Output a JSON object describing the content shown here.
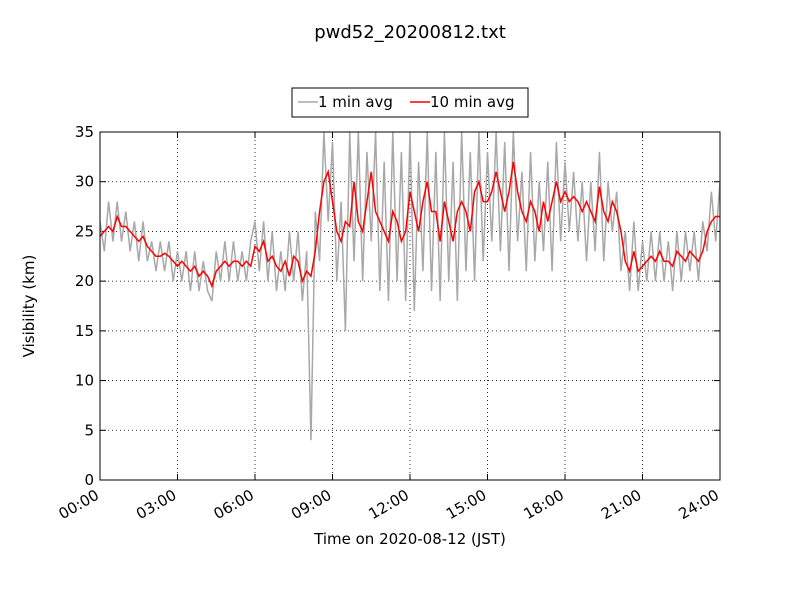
{
  "chart_data": {
    "type": "line",
    "title": "pwd52_20200812.txt",
    "xlabel": "Time on 2020-08-12 (JST)",
    "ylabel": "Visibility (km)",
    "x": [
      0,
      10,
      20,
      30,
      40,
      50,
      60,
      70,
      80,
      90,
      100,
      110,
      120,
      130,
      140,
      150,
      160,
      170,
      180,
      190,
      200,
      210,
      220,
      230,
      240,
      250,
      260,
      270,
      280,
      290,
      300,
      310,
      320,
      330,
      340,
      350,
      360,
      370,
      380,
      390,
      400,
      410,
      420,
      430,
      440,
      450,
      460,
      470,
      480,
      490,
      500,
      510,
      520,
      530,
      540,
      550,
      560,
      570,
      580,
      590,
      600,
      610,
      620,
      630,
      640,
      650,
      660,
      670,
      680,
      690,
      700,
      710,
      720,
      730,
      740,
      750,
      760,
      770,
      780,
      790,
      800,
      810,
      820,
      830,
      840,
      850,
      860,
      870,
      880,
      890,
      900,
      910,
      920,
      930,
      940,
      950,
      960,
      970,
      980,
      990,
      1000,
      1010,
      1020,
      1030,
      1040,
      1050,
      1060,
      1070,
      1080,
      1090,
      1100,
      1110,
      1120,
      1130,
      1140,
      1150,
      1160,
      1170,
      1180,
      1190,
      1200,
      1210,
      1220,
      1230,
      1240,
      1250,
      1260,
      1270,
      1280,
      1290,
      1300,
      1310,
      1320,
      1330,
      1340,
      1350,
      1360,
      1370,
      1380,
      1390,
      1400,
      1410,
      1420,
      1430,
      1440
    ],
    "series": [
      {
        "name": "1 min avg",
        "color": "#a8a8a8",
        "values": [
          26,
          23,
          28,
          24,
          28,
          24,
          27,
          23,
          26,
          22,
          26,
          22,
          24,
          21,
          24,
          21,
          24,
          20,
          23,
          20,
          23,
          19,
          23,
          19,
          22,
          19,
          18,
          23,
          20,
          24,
          20,
          24,
          20,
          23,
          20,
          24,
          26,
          21,
          26,
          20,
          25,
          19,
          23,
          19,
          25,
          20,
          25,
          18,
          23,
          4,
          27,
          22,
          35,
          26,
          34,
          20,
          28,
          15,
          35,
          22,
          35,
          20,
          33,
          24,
          35,
          19,
          32,
          18,
          35,
          20,
          33,
          18,
          35,
          17,
          32,
          21,
          35,
          19,
          33,
          18,
          35,
          20,
          32,
          18,
          35,
          21,
          33,
          20,
          35,
          22,
          33,
          24,
          35,
          23,
          34,
          21,
          35,
          24,
          31,
          21,
          33,
          22,
          30,
          23,
          32,
          21,
          34,
          24,
          32,
          25,
          31,
          24,
          30,
          22,
          30,
          23,
          33,
          22,
          30,
          25,
          29,
          21,
          25,
          19,
          26,
          19,
          24,
          20,
          25,
          20,
          25,
          20,
          24,
          19,
          25,
          20,
          25,
          21,
          25,
          20,
          26,
          23,
          29,
          24,
          30
        ]
      },
      {
        "name": "10 min avg",
        "color": "#ff0000",
        "values": [
          24.5,
          25,
          25.5,
          25,
          26.5,
          25.5,
          25.5,
          25,
          24.5,
          24,
          24.5,
          23.5,
          23,
          22.5,
          22.5,
          22.8,
          22.5,
          22,
          21.5,
          22,
          21.5,
          21,
          21.5,
          20.5,
          21,
          20.5,
          19.5,
          21,
          21.5,
          22,
          21.5,
          22,
          22,
          21.5,
          22,
          21.5,
          23.5,
          23,
          24,
          22,
          22.5,
          21.5,
          21,
          22,
          20.5,
          22.5,
          22,
          20,
          21,
          20.5,
          23,
          27,
          30,
          31,
          28,
          25,
          24,
          26,
          25.5,
          30,
          26,
          25,
          28,
          31,
          27,
          26,
          25,
          24,
          27,
          26,
          24,
          25,
          29,
          27,
          25,
          28,
          30,
          27,
          27,
          24,
          28,
          26,
          24,
          27,
          28,
          27,
          25,
          29,
          30,
          28,
          28,
          29,
          31,
          29,
          27,
          29,
          32,
          29,
          27,
          26,
          28,
          27,
          25,
          28,
          26,
          28,
          30,
          28,
          29,
          28,
          28.5,
          28,
          27,
          28,
          27,
          26,
          29.5,
          27,
          26,
          28,
          27,
          25,
          22,
          21,
          23,
          21,
          21.5,
          22,
          22.5,
          22,
          23,
          22,
          22,
          21.5,
          23,
          22.5,
          22,
          23,
          22.5,
          22,
          23,
          25,
          26,
          26.5,
          26.5
        ]
      }
    ],
    "xlim": [
      0,
      1440
    ],
    "xticks": [
      {
        "value": 0,
        "label": "00:00"
      },
      {
        "value": 180,
        "label": "03:00"
      },
      {
        "value": 360,
        "label": "06:00"
      },
      {
        "value": 540,
        "label": "09:00"
      },
      {
        "value": 720,
        "label": "12:00"
      },
      {
        "value": 900,
        "label": "15:00"
      },
      {
        "value": 1080,
        "label": "18:00"
      },
      {
        "value": 1260,
        "label": "21:00"
      },
      {
        "value": 1440,
        "label": "24:00"
      }
    ],
    "ylim": [
      0,
      35
    ],
    "yticks": [
      0,
      5,
      10,
      15,
      20,
      25,
      30,
      35
    ],
    "grid": true,
    "legend": "top"
  }
}
